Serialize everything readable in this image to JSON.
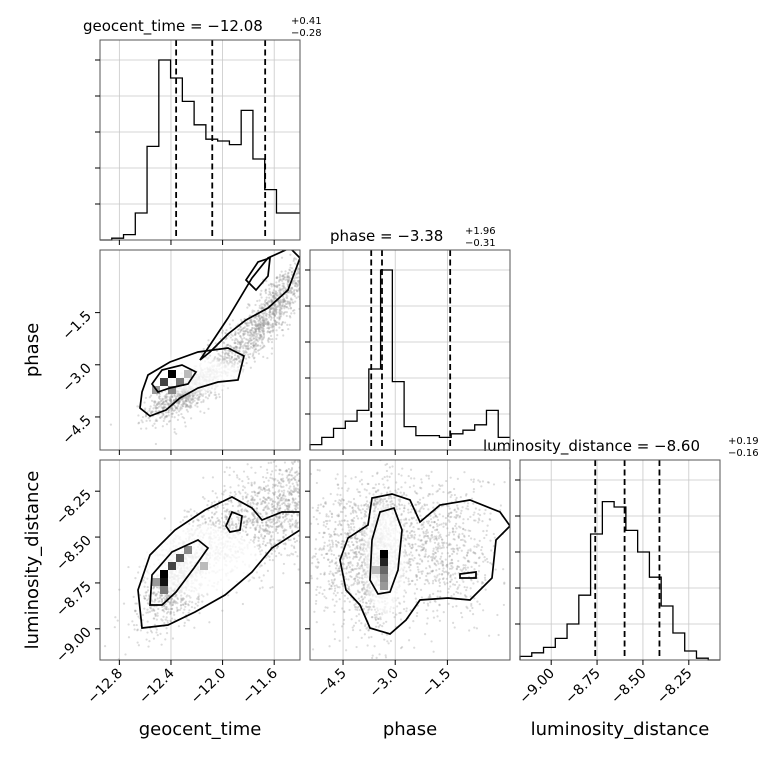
{
  "chart_data": {
    "type": "corner",
    "parameters": [
      "geocent_time",
      "phase",
      "luminosity_distance"
    ],
    "titles": {
      "geocent_time": {
        "label": "geocent_time = −12.08",
        "median": -12.08,
        "plus": "+0.41",
        "minus": "−0.28"
      },
      "phase": {
        "label": "phase = −3.38",
        "median": -3.38,
        "plus": "+1.96",
        "minus": "−0.31"
      },
      "luminosity_distance": {
        "label": "luminosity_distance = −8.60",
        "median": -8.6,
        "plus": "+0.19",
        "minus": "−0.16"
      }
    },
    "ranges": {
      "geocent_time": [
        -12.95,
        -11.4
      ],
      "phase": [
        -5.45,
        0.3
      ],
      "luminosity_distance": [
        -9.17,
        -8.08
      ]
    },
    "ticks": {
      "geocent_time": [
        {
          "v": -12.8,
          "t": "−12.8"
        },
        {
          "v": -12.4,
          "t": "−12.4"
        },
        {
          "v": -12.0,
          "t": "−12.0"
        },
        {
          "v": -11.6,
          "t": "−11.6"
        }
      ],
      "phase": [
        {
          "v": -4.5,
          "t": "−4.5"
        },
        {
          "v": -3.0,
          "t": "−3.0"
        },
        {
          "v": -1.5,
          "t": "−1.5"
        }
      ],
      "luminosity_distance": [
        {
          "v": -9.0,
          "t": "−9.00"
        },
        {
          "v": -8.75,
          "t": "−8.75"
        },
        {
          "v": -8.5,
          "t": "−8.50"
        },
        {
          "v": -8.25,
          "t": "−8.25"
        }
      ]
    },
    "quantiles": {
      "geocent_time": [
        -12.36,
        -12.08,
        -11.67
      ],
      "phase": [
        -3.69,
        -3.38,
        -1.42
      ],
      "luminosity_distance": [
        -8.76,
        -8.6,
        -8.41
      ]
    },
    "histograms": {
      "geocent_time": [
        0.0,
        0.01,
        0.03,
        0.15,
        0.52,
        1.0,
        0.9,
        0.77,
        0.64,
        0.56,
        0.55,
        0.53,
        0.72,
        0.45,
        0.28,
        0.15,
        0.15
      ],
      "phase": [
        0.03,
        0.07,
        0.12,
        0.16,
        0.22,
        0.45,
        1.0,
        0.38,
        0.13,
        0.08,
        0.08,
        0.07,
        0.09,
        0.11,
        0.14,
        0.22,
        0.07
      ],
      "luminosity_distance": [
        0.02,
        0.04,
        0.07,
        0.12,
        0.2,
        0.36,
        0.7,
        0.88,
        0.85,
        0.72,
        0.6,
        0.46,
        0.3,
        0.15,
        0.05,
        0.01,
        0.0
      ]
    },
    "grid": true
  }
}
